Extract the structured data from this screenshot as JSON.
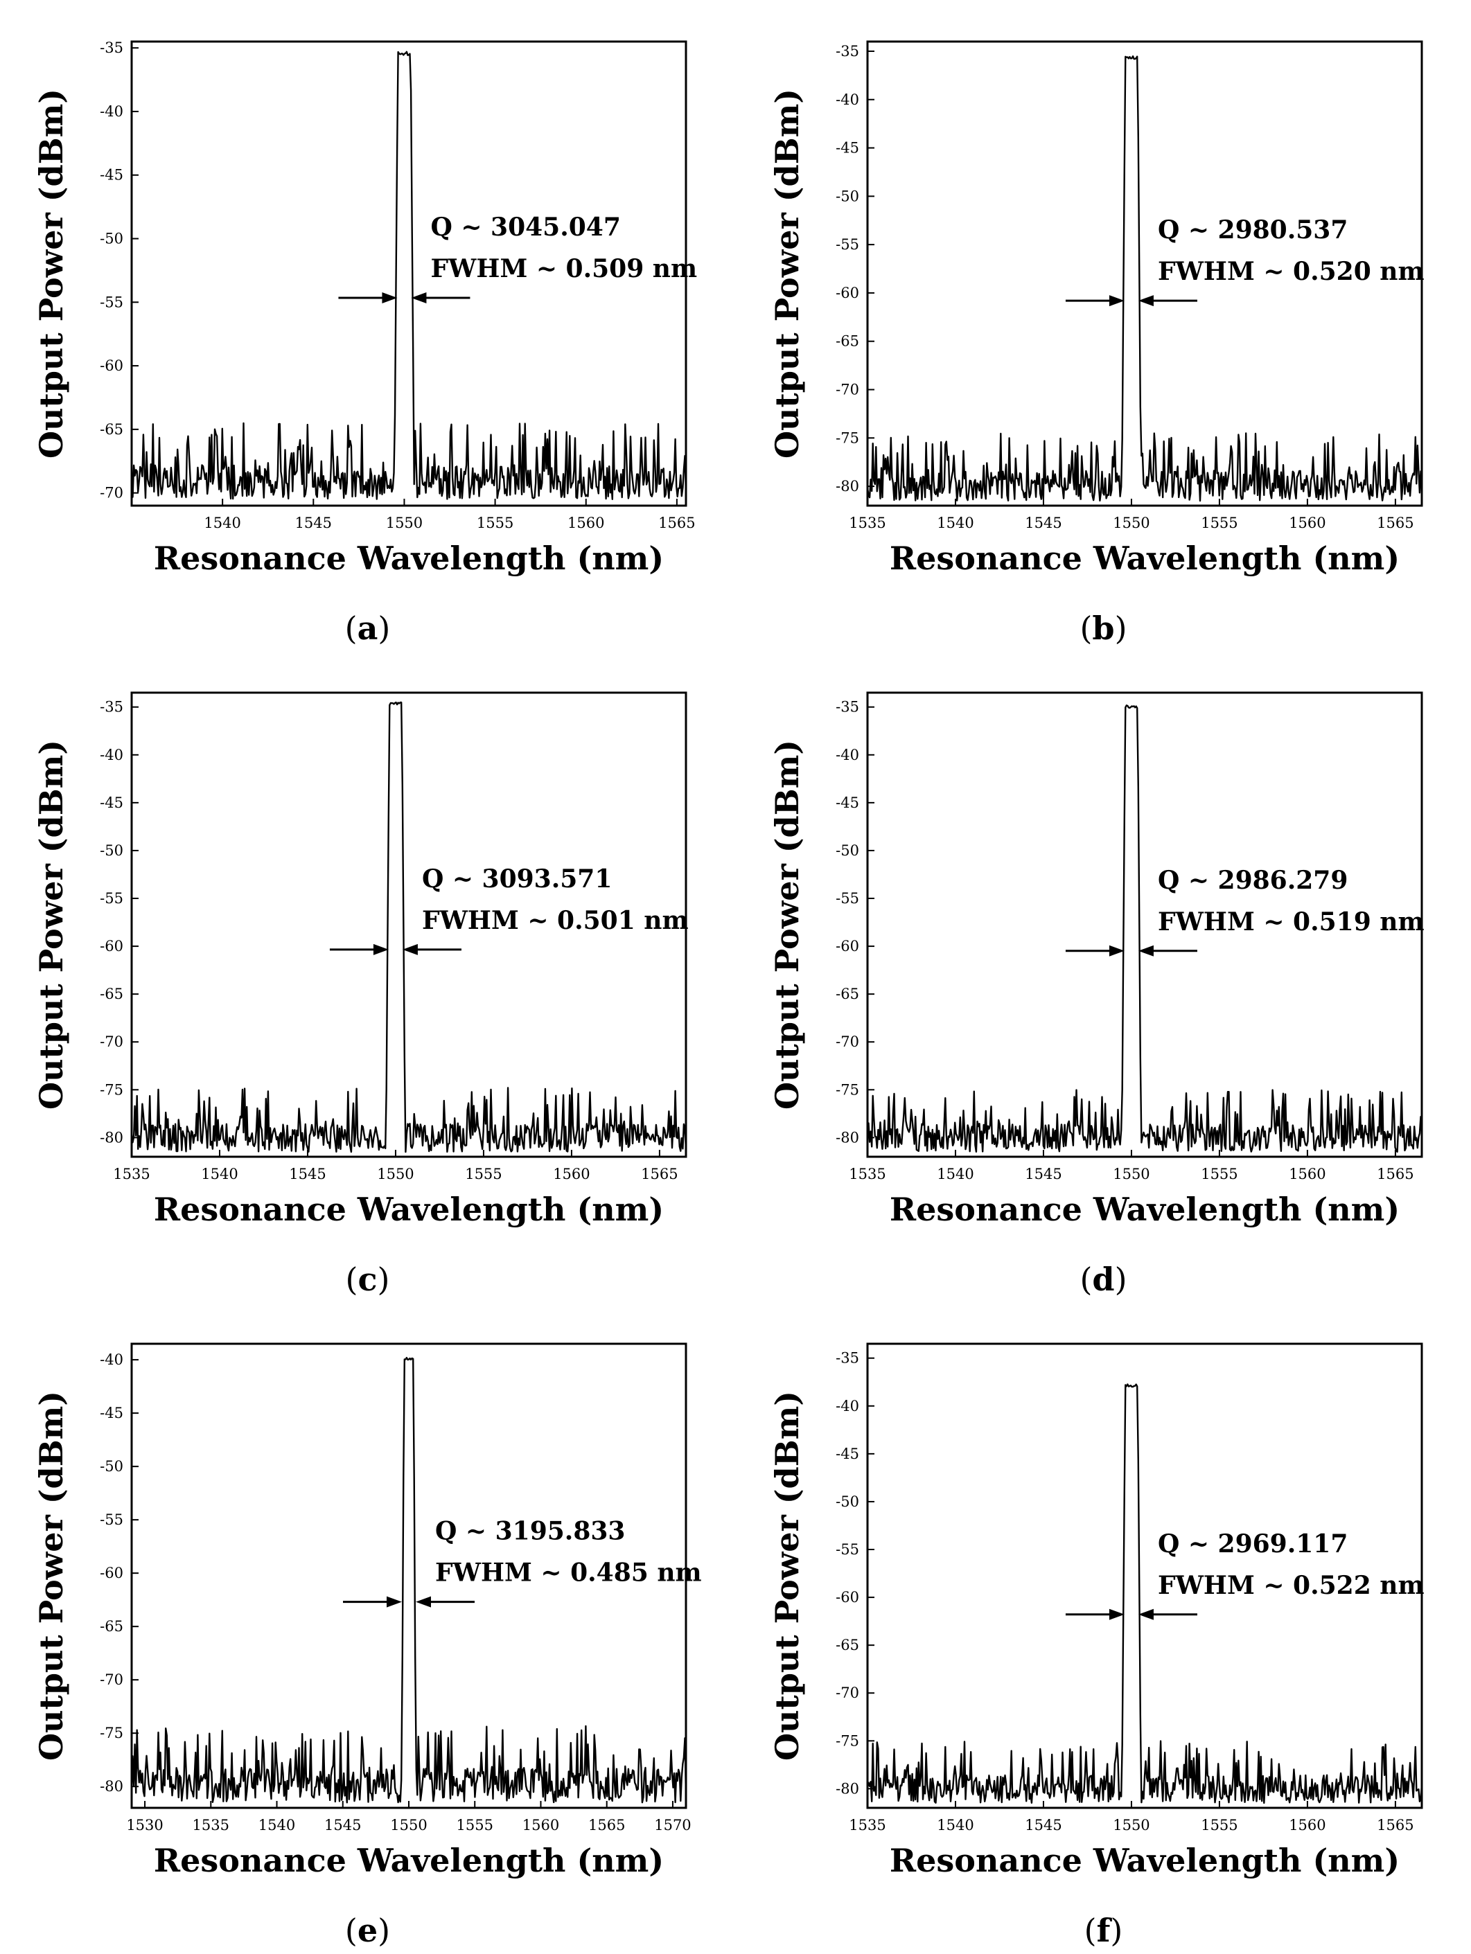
{
  "chart_data": [
    {
      "id": "a",
      "type": "line",
      "caption": "a",
      "xlabel": "Resonance Wavelength (nm)",
      "ylabel": "Output Power (dBm)",
      "xlim": [
        1535,
        1565.5
      ],
      "ylim": [
        -71,
        -34.5
      ],
      "xticks": [
        1540,
        1545,
        1550,
        1555,
        1560,
        1565
      ],
      "yticks": [
        -70,
        -65,
        -60,
        -55,
        -50,
        -45,
        -40,
        -35
      ],
      "noise_floor": -70.5,
      "noise_top": -64.5,
      "peak": {
        "center": 1550.0,
        "fwhm": 0.509,
        "power": -35.3
      },
      "annotations": [
        "Q ~ 3045.047",
        "FWHM ~ 0.509 nm"
      ]
    },
    {
      "id": "b",
      "type": "line",
      "caption": "b",
      "xlabel": "Resonance Wavelength (nm)",
      "ylabel": "Output Power (dBm)",
      "xlim": [
        1535,
        1566.5
      ],
      "ylim": [
        -82,
        -34
      ],
      "xticks": [
        1535,
        1540,
        1545,
        1550,
        1555,
        1560,
        1565
      ],
      "yticks": [
        -80,
        -75,
        -70,
        -65,
        -60,
        -55,
        -50,
        -45,
        -40,
        -35
      ],
      "noise_floor": -81.5,
      "noise_top": -74.5,
      "peak": {
        "center": 1550.0,
        "fwhm": 0.52,
        "power": -35.5
      },
      "annotations": [
        "Q ~ 2980.537",
        "FWHM ~ 0.520 nm"
      ]
    },
    {
      "id": "c",
      "type": "line",
      "caption": "c",
      "xlabel": "Resonance Wavelength (nm)",
      "ylabel": "Output Power (dBm)",
      "xlim": [
        1535,
        1566.5
      ],
      "ylim": [
        -82,
        -33.5
      ],
      "xticks": [
        1535,
        1540,
        1545,
        1550,
        1555,
        1560,
        1565
      ],
      "yticks": [
        -80,
        -75,
        -70,
        -65,
        -60,
        -55,
        -50,
        -45,
        -40,
        -35
      ],
      "noise_floor": -81.5,
      "noise_top": -74.8,
      "peak": {
        "center": 1550.0,
        "fwhm": 0.501,
        "power": -34.5
      },
      "annotations": [
        "Q ~ 3093.571",
        "FWHM ~ 0.501 nm"
      ]
    },
    {
      "id": "d",
      "type": "line",
      "caption": "d",
      "xlabel": "Resonance Wavelength (nm)",
      "ylabel": "Output Power (dBm)",
      "xlim": [
        1535,
        1566.5
      ],
      "ylim": [
        -82,
        -33.5
      ],
      "xticks": [
        1535,
        1540,
        1545,
        1550,
        1555,
        1560,
        1565
      ],
      "yticks": [
        -80,
        -75,
        -70,
        -65,
        -60,
        -55,
        -50,
        -45,
        -40,
        -35
      ],
      "noise_floor": -81.5,
      "noise_top": -75,
      "peak": {
        "center": 1550.0,
        "fwhm": 0.519,
        "power": -34.8
      },
      "annotations": [
        "Q ~ 2986.279",
        "FWHM ~ 0.519 nm"
      ]
    },
    {
      "id": "e",
      "type": "line",
      "caption": "e",
      "xlabel": "Resonance Wavelength (nm)",
      "ylabel": "Output Power (dBm)",
      "xlim": [
        1529,
        1571
      ],
      "ylim": [
        -82,
        -38.5
      ],
      "xticks": [
        1530,
        1535,
        1540,
        1545,
        1550,
        1555,
        1560,
        1565,
        1570
      ],
      "yticks": [
        -80,
        -75,
        -70,
        -65,
        -60,
        -55,
        -50,
        -45,
        -40
      ],
      "noise_floor": -81.5,
      "noise_top": -74.2,
      "peak": {
        "center": 1550.0,
        "fwhm": 0.485,
        "power": -39.7
      },
      "annotations": [
        "Q ~ 3195.833",
        "FWHM ~ 0.485 nm"
      ]
    },
    {
      "id": "f",
      "type": "line",
      "caption": "f",
      "xlabel": "Resonance Wavelength (nm)",
      "ylabel": "Output Power (dBm)",
      "xlim": [
        1535,
        1566.5
      ],
      "ylim": [
        -82,
        -33.5
      ],
      "xticks": [
        1535,
        1540,
        1545,
        1550,
        1555,
        1560,
        1565
      ],
      "yticks": [
        -80,
        -75,
        -70,
        -65,
        -60,
        -55,
        -50,
        -45,
        -40,
        -35
      ],
      "noise_floor": -81.5,
      "noise_top": -75,
      "peak": {
        "center": 1550.0,
        "fwhm": 0.522,
        "power": -37.7
      },
      "annotations": [
        "Q ~ 2969.117",
        "FWHM ~ 0.522 nm"
      ]
    }
  ]
}
